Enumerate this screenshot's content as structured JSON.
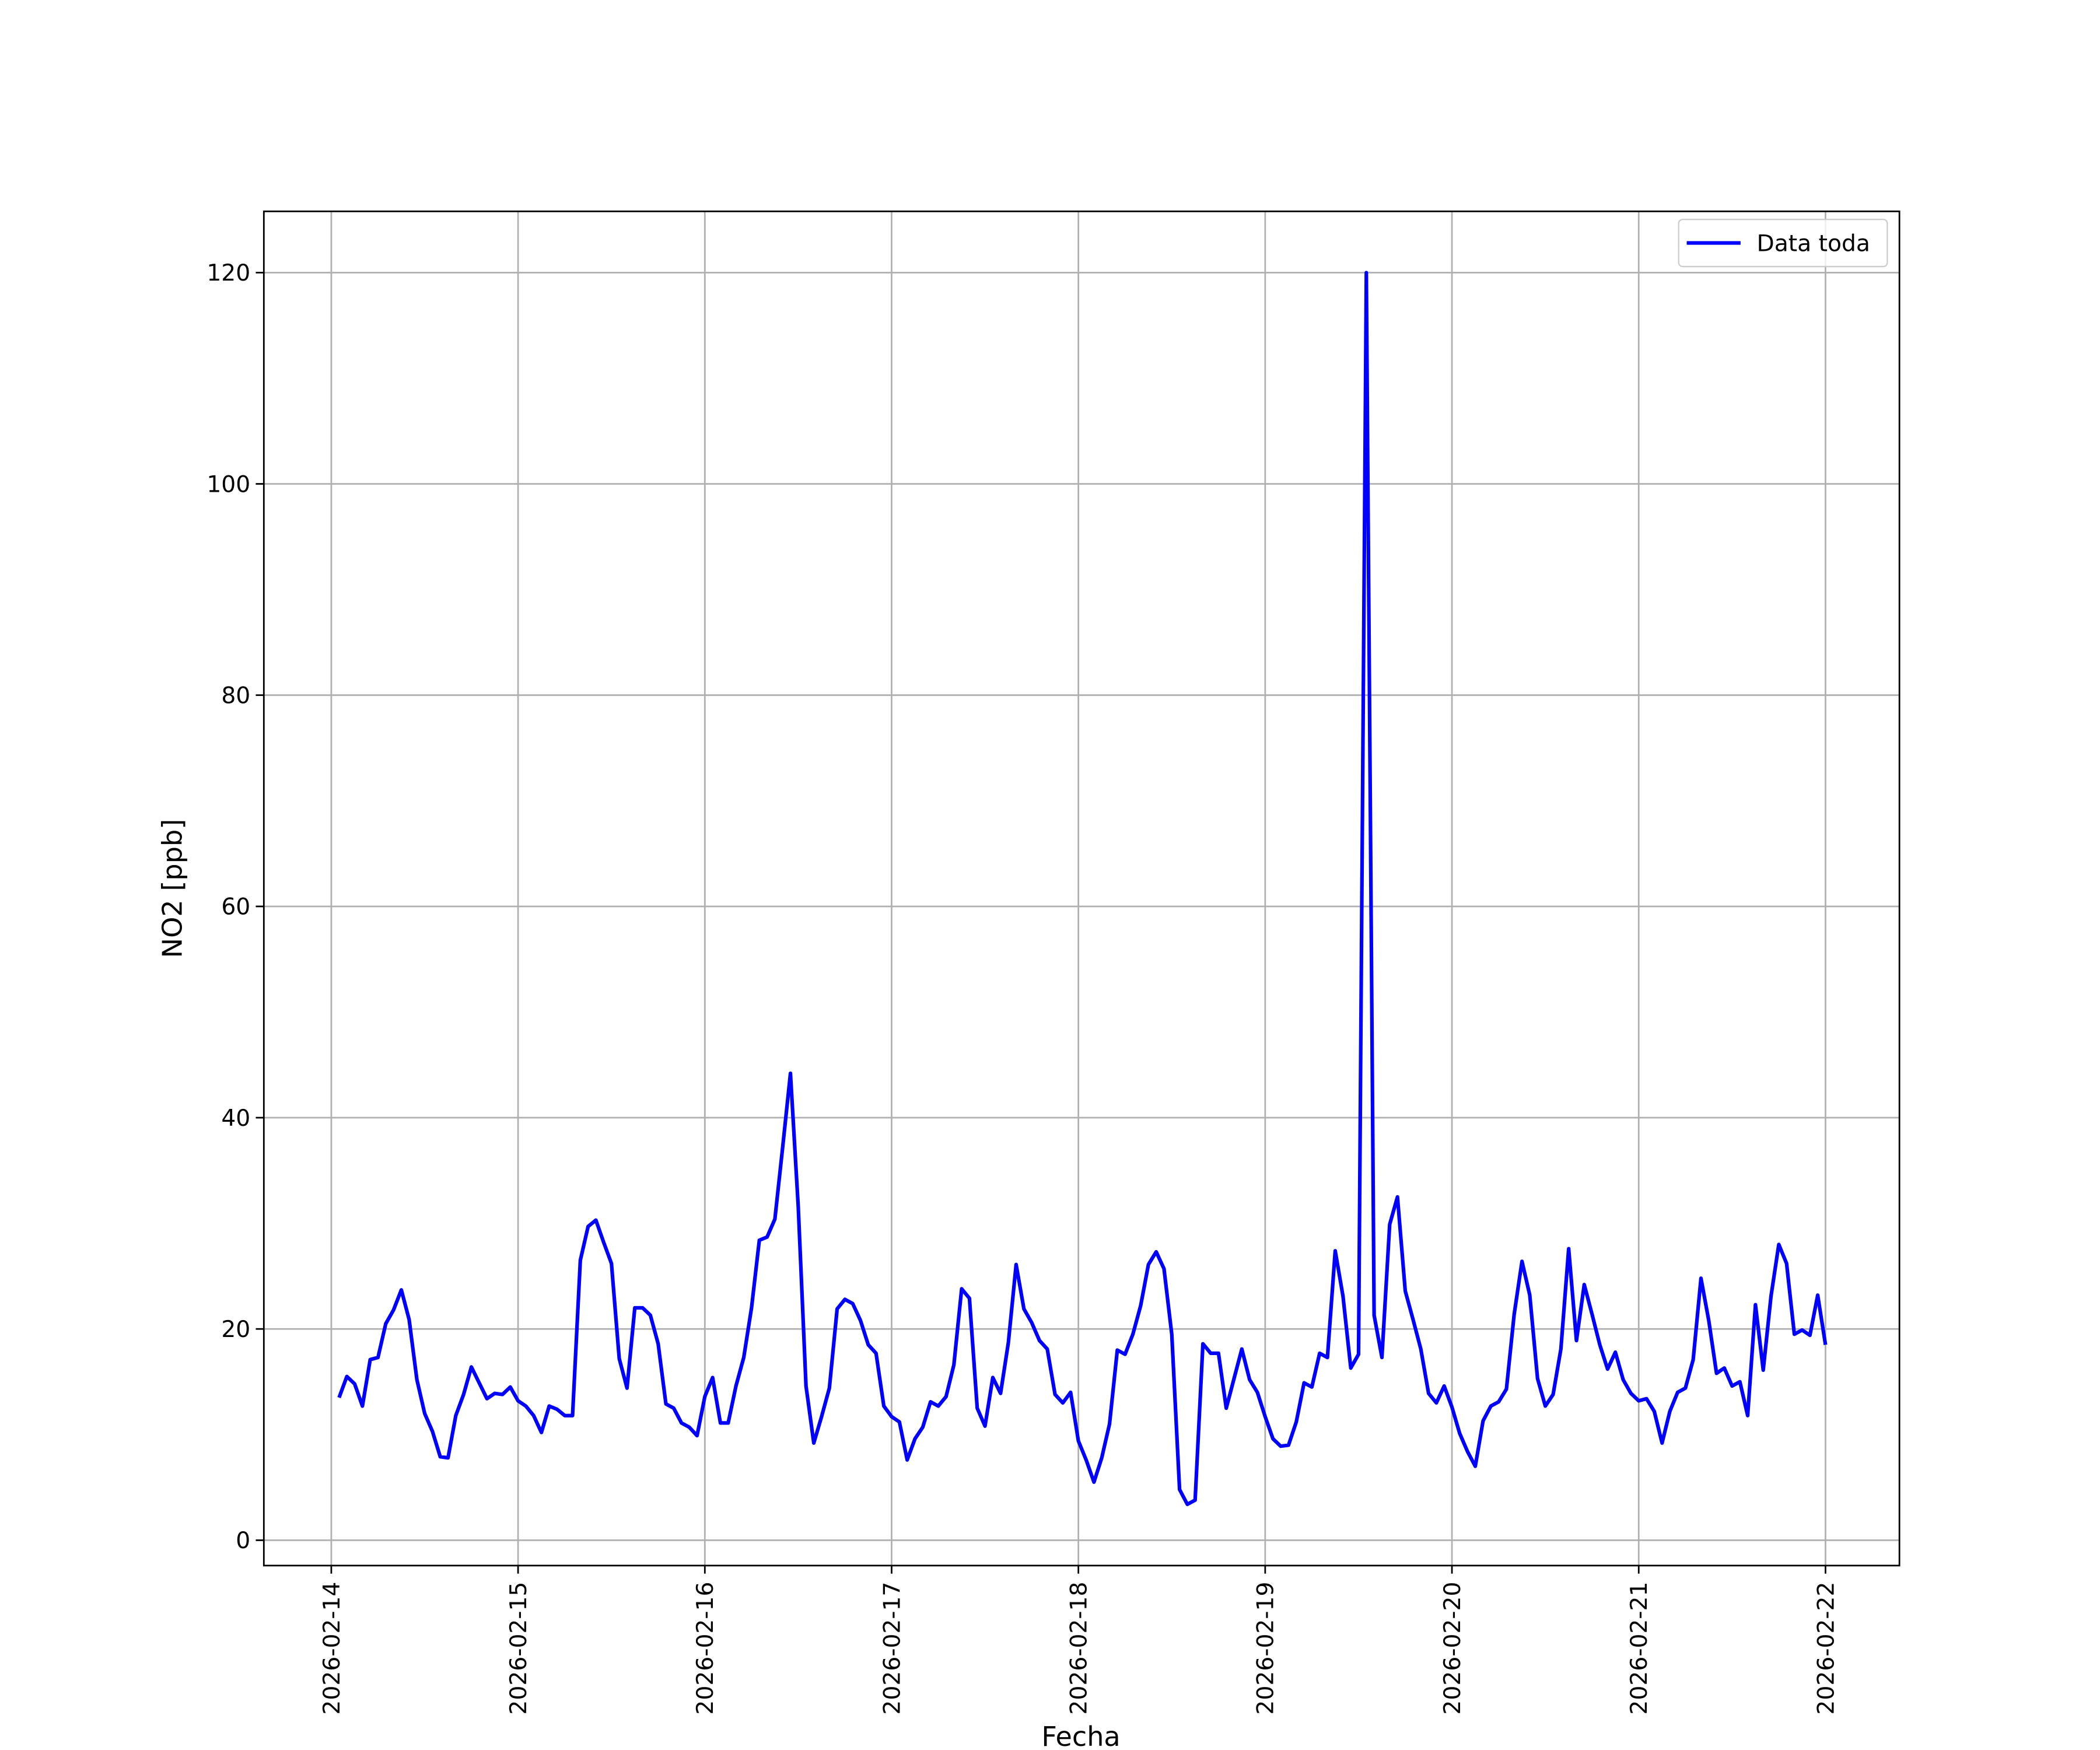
{
  "chart_data": {
    "type": "line",
    "xlabel": "Fecha",
    "ylabel": "NO2 [ppb]",
    "x": [
      "2026-02-14 01:00",
      "2026-02-14 02:00",
      "2026-02-14 03:00",
      "2026-02-14 04:00",
      "2026-02-14 05:00",
      "2026-02-14 06:00",
      "2026-02-14 07:00",
      "2026-02-14 08:00",
      "2026-02-14 09:00",
      "2026-02-14 10:00",
      "2026-02-14 11:00",
      "2026-02-14 12:00",
      "2026-02-14 13:00",
      "2026-02-14 14:00",
      "2026-02-14 15:00",
      "2026-02-14 16:00",
      "2026-02-14 17:00",
      "2026-02-14 18:00",
      "2026-02-14 19:00",
      "2026-02-14 20:00",
      "2026-02-14 21:00",
      "2026-02-14 22:00",
      "2026-02-14 23:00",
      "2026-02-15 00:00",
      "2026-02-15 01:00",
      "2026-02-15 02:00",
      "2026-02-15 03:00",
      "2026-02-15 04:00",
      "2026-02-15 05:00",
      "2026-02-15 06:00",
      "2026-02-15 07:00",
      "2026-02-15 08:00",
      "2026-02-15 09:00",
      "2026-02-15 10:00",
      "2026-02-15 11:00",
      "2026-02-15 12:00",
      "2026-02-15 13:00",
      "2026-02-15 14:00",
      "2026-02-15 15:00",
      "2026-02-15 16:00",
      "2026-02-15 17:00",
      "2026-02-15 18:00",
      "2026-02-15 19:00",
      "2026-02-15 20:00",
      "2026-02-15 21:00",
      "2026-02-15 22:00",
      "2026-02-15 23:00",
      "2026-02-16 00:00",
      "2026-02-16 01:00",
      "2026-02-16 02:00",
      "2026-02-16 03:00",
      "2026-02-16 04:00",
      "2026-02-16 05:00",
      "2026-02-16 06:00",
      "2026-02-16 07:00",
      "2026-02-16 08:00",
      "2026-02-16 09:00",
      "2026-02-16 10:00",
      "2026-02-16 11:00",
      "2026-02-16 12:00",
      "2026-02-16 13:00",
      "2026-02-16 14:00",
      "2026-02-16 15:00",
      "2026-02-16 16:00",
      "2026-02-16 17:00",
      "2026-02-16 18:00",
      "2026-02-16 19:00",
      "2026-02-16 20:00",
      "2026-02-16 21:00",
      "2026-02-16 22:00",
      "2026-02-16 23:00",
      "2026-02-17 00:00",
      "2026-02-17 01:00",
      "2026-02-17 02:00",
      "2026-02-17 03:00",
      "2026-02-17 04:00",
      "2026-02-17 05:00",
      "2026-02-17 06:00",
      "2026-02-17 07:00",
      "2026-02-17 08:00",
      "2026-02-17 09:00",
      "2026-02-17 10:00",
      "2026-02-17 11:00",
      "2026-02-17 12:00",
      "2026-02-17 13:00",
      "2026-02-17 14:00",
      "2026-02-17 15:00",
      "2026-02-17 16:00",
      "2026-02-17 17:00",
      "2026-02-17 18:00",
      "2026-02-17 19:00",
      "2026-02-17 20:00",
      "2026-02-17 21:00",
      "2026-02-17 22:00",
      "2026-02-17 23:00",
      "2026-02-18 00:00",
      "2026-02-18 01:00",
      "2026-02-18 02:00",
      "2026-02-18 03:00",
      "2026-02-18 04:00",
      "2026-02-18 05:00",
      "2026-02-18 06:00",
      "2026-02-18 07:00",
      "2026-02-18 08:00",
      "2026-02-18 09:00",
      "2026-02-18 10:00",
      "2026-02-18 11:00",
      "2026-02-18 12:00",
      "2026-02-18 13:00",
      "2026-02-18 14:00",
      "2026-02-18 15:00",
      "2026-02-18 16:00",
      "2026-02-18 17:00",
      "2026-02-18 18:00",
      "2026-02-18 19:00",
      "2026-02-18 20:00",
      "2026-02-18 21:00",
      "2026-02-18 22:00",
      "2026-02-18 23:00",
      "2026-02-19 00:00",
      "2026-02-19 01:00",
      "2026-02-19 02:00",
      "2026-02-19 03:00",
      "2026-02-19 04:00",
      "2026-02-19 05:00",
      "2026-02-19 06:00",
      "2026-02-19 07:00",
      "2026-02-19 08:00",
      "2026-02-19 09:00",
      "2026-02-19 10:00",
      "2026-02-19 11:00",
      "2026-02-19 12:00",
      "2026-02-19 13:00",
      "2026-02-19 14:00",
      "2026-02-19 15:00",
      "2026-02-19 16:00",
      "2026-02-19 17:00",
      "2026-02-19 18:00",
      "2026-02-19 19:00",
      "2026-02-19 20:00",
      "2026-02-19 21:00",
      "2026-02-19 22:00",
      "2026-02-19 23:00",
      "2026-02-20 00:00",
      "2026-02-20 01:00",
      "2026-02-20 02:00",
      "2026-02-20 03:00",
      "2026-02-20 04:00",
      "2026-02-20 05:00",
      "2026-02-20 06:00",
      "2026-02-20 07:00",
      "2026-02-20 08:00",
      "2026-02-20 09:00",
      "2026-02-20 10:00",
      "2026-02-20 11:00",
      "2026-02-20 12:00",
      "2026-02-20 13:00",
      "2026-02-20 14:00",
      "2026-02-20 15:00",
      "2026-02-20 16:00",
      "2026-02-20 17:00",
      "2026-02-20 18:00",
      "2026-02-20 19:00",
      "2026-02-20 20:00",
      "2026-02-20 21:00",
      "2026-02-20 22:00",
      "2026-02-20 23:00",
      "2026-02-21 00:00",
      "2026-02-21 01:00",
      "2026-02-21 02:00",
      "2026-02-21 03:00",
      "2026-02-21 04:00",
      "2026-02-21 05:00",
      "2026-02-21 06:00",
      "2026-02-21 07:00",
      "2026-02-21 08:00",
      "2026-02-21 09:00",
      "2026-02-21 10:00",
      "2026-02-21 11:00",
      "2026-02-21 12:00",
      "2026-02-21 13:00",
      "2026-02-21 14:00",
      "2026-02-21 15:00",
      "2026-02-21 16:00",
      "2026-02-21 17:00",
      "2026-02-21 18:00",
      "2026-02-21 19:00",
      "2026-02-21 20:00",
      "2026-02-21 21:00",
      "2026-02-21 22:00",
      "2026-02-21 23:00",
      "2026-02-22 00:00"
    ],
    "series": [
      {
        "name": "Data toda",
        "color": "#0000ff",
        "values": [
          13.5,
          15.5,
          14.8,
          12.7,
          17.1,
          17.3,
          20.5,
          21.8,
          23.7,
          20.9,
          15.2,
          12.0,
          10.3,
          7.9,
          7.8,
          11.8,
          13.8,
          16.4,
          14.9,
          13.4,
          13.9,
          13.8,
          14.5,
          13.2,
          12.7,
          11.8,
          10.2,
          12.7,
          12.4,
          11.8,
          11.8,
          26.5,
          29.7,
          30.3,
          28.2,
          26.2,
          17.2,
          14.4,
          22.0,
          22.0,
          21.3,
          18.6,
          12.9,
          12.5,
          11.1,
          10.7,
          9.9,
          13.6,
          15.4,
          11.1,
          11.1,
          14.6,
          17.3,
          22.0,
          28.4,
          28.7,
          30.4,
          37.2,
          44.2,
          31.6,
          14.6,
          9.2,
          11.7,
          14.4,
          21.9,
          22.8,
          22.4,
          20.8,
          18.5,
          17.7,
          12.7,
          11.7,
          11.2,
          7.6,
          9.6,
          10.7,
          13.1,
          12.7,
          13.6,
          16.6,
          23.8,
          22.9,
          12.5,
          10.8,
          15.4,
          13.9,
          18.7,
          26.1,
          21.9,
          20.6,
          18.9,
          18.1,
          13.8,
          13.0,
          14.0,
          9.4,
          7.6,
          5.5,
          7.8,
          11.0,
          18.0,
          17.6,
          19.5,
          22.2,
          26.1,
          27.3,
          25.7,
          19.5,
          4.8,
          3.4,
          3.8,
          18.6,
          17.7,
          17.7,
          12.5,
          15.3,
          18.1,
          15.2,
          14.0,
          11.7,
          9.6,
          8.9,
          9.0,
          11.2,
          14.9,
          14.5,
          17.7,
          17.3,
          27.4,
          23.1,
          16.3,
          17.6,
          120.0,
          21.3,
          17.3,
          29.9,
          32.5,
          23.6,
          20.9,
          18.1,
          13.9,
          13.0,
          14.6,
          12.6,
          10.1,
          8.4,
          7.0,
          11.3,
          12.7,
          13.1,
          14.3,
          21.4,
          26.4,
          23.2,
          15.3,
          12.7,
          13.8,
          18.1,
          27.6,
          18.9,
          24.2,
          21.4,
          18.5,
          16.2,
          17.8,
          15.2,
          13.9,
          13.2,
          13.4,
          12.2,
          9.2,
          12.2,
          14.0,
          14.4,
          17.1,
          24.8,
          20.8,
          15.8,
          16.3,
          14.6,
          15.0,
          11.8,
          22.3,
          16.1,
          23.1,
          28.0,
          26.2,
          19.5,
          19.9,
          19.4,
          23.2,
          18.5
        ]
      }
    ],
    "xlim": [
      "2026-02-13 15:20",
      "2026-02-22 09:30"
    ],
    "xticks": [
      "2026-02-14",
      "2026-02-15",
      "2026-02-16",
      "2026-02-17",
      "2026-02-18",
      "2026-02-19",
      "2026-02-20",
      "2026-02-21",
      "2026-02-22"
    ],
    "ylim": [
      -2.4,
      125.8
    ],
    "yticks": [
      0,
      20,
      40,
      60,
      80,
      100,
      120
    ],
    "grid": true,
    "legend": "upper right"
  }
}
